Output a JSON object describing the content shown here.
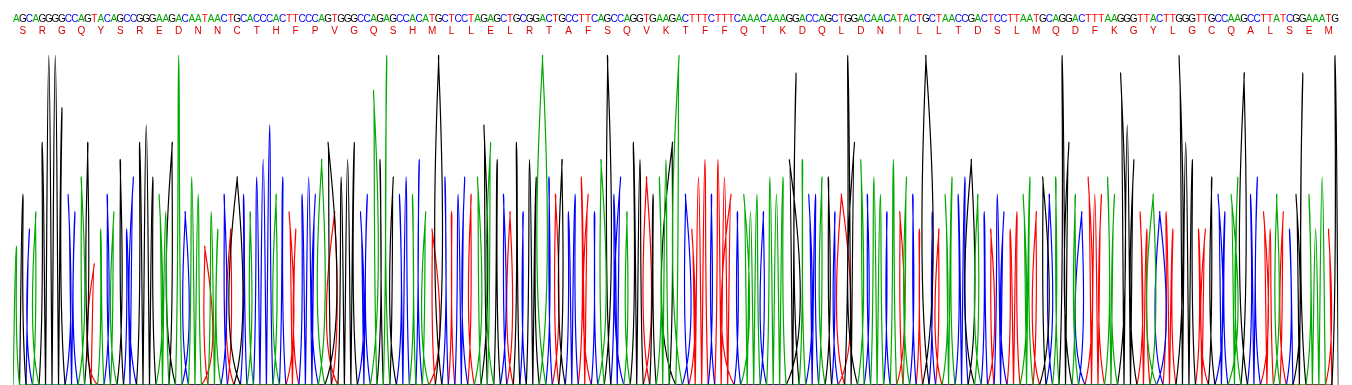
{
  "chart_data": {
    "type": "line",
    "categories": [
      "A",
      "G",
      "C",
      "A",
      "G",
      "G",
      "G",
      "G",
      "C",
      "C",
      "A",
      "G",
      "T",
      "A",
      "C",
      "A",
      "G",
      "C",
      "C",
      "G",
      "G",
      "G",
      "A",
      "A",
      "G",
      "A",
      "C",
      "A",
      "A",
      "T",
      "A",
      "A",
      "C",
      "T",
      "G",
      "C",
      "A",
      "C",
      "C",
      "C",
      "A",
      "C",
      "T",
      "T",
      "C",
      "C",
      "C",
      "A",
      "G",
      "T",
      "G",
      "G",
      "G",
      "C",
      "C",
      "A",
      "G",
      "A",
      "G",
      "C",
      "C",
      "A",
      "C",
      "A",
      "T",
      "G",
      "C",
      "T",
      "C",
      "C",
      "T",
      "A",
      "G",
      "A",
      "G",
      "C",
      "T",
      "G",
      "C",
      "G",
      "G",
      "A",
      "C",
      "T",
      "G",
      "C",
      "C",
      "T",
      "T",
      "C",
      "A",
      "G",
      "C",
      "C",
      "A",
      "G",
      "G",
      "T",
      "G",
      "A",
      "A",
      "G",
      "A",
      "C",
      "T",
      "T",
      "T",
      "C",
      "T",
      "T",
      "T",
      "C",
      "A",
      "A",
      "A",
      "C",
      "A",
      "A",
      "A",
      "G",
      "G",
      "A",
      "C",
      "C",
      "A",
      "G",
      "C",
      "T",
      "G",
      "G",
      "A",
      "C",
      "A",
      "A",
      "C",
      "A",
      "T",
      "A",
      "C",
      "T",
      "G",
      "C",
      "T",
      "A",
      "A",
      "C",
      "C",
      "G",
      "A",
      "C",
      "T",
      "C",
      "C",
      "T",
      "T",
      "A",
      "A",
      "T",
      "G",
      "C",
      "A",
      "G",
      "G",
      "A",
      "C",
      "T",
      "T",
      "T",
      "A",
      "A",
      "G",
      "G",
      "G",
      "T",
      "T",
      "A",
      "C",
      "T",
      "T",
      "G",
      "G",
      "G",
      "T",
      "T",
      "G",
      "C",
      "C",
      "A",
      "A",
      "G",
      "C",
      "C",
      "T",
      "T",
      "A",
      "T",
      "C",
      "G",
      "G",
      "A",
      "A",
      "A",
      "T",
      "G"
    ],
    "values": [
      40,
      55,
      45,
      50,
      70,
      95,
      95,
      80,
      55,
      50,
      60,
      70,
      35,
      45,
      55,
      50,
      65,
      45,
      60,
      70,
      75,
      60,
      55,
      50,
      70,
      95,
      50,
      60,
      55,
      40,
      50,
      45,
      55,
      45,
      60,
      55,
      50,
      60,
      65,
      75,
      55,
      60,
      50,
      45,
      55,
      60,
      55,
      65,
      70,
      50,
      60,
      65,
      70,
      50,
      55,
      85,
      65,
      95,
      60,
      55,
      60,
      55,
      65,
      50,
      45,
      95,
      60,
      50,
      55,
      60,
      55,
      60,
      75,
      70,
      65,
      55,
      50,
      70,
      50,
      65,
      60,
      95,
      60,
      55,
      65,
      50,
      55,
      60,
      55,
      50,
      65,
      95,
      55,
      60,
      50,
      70,
      65,
      60,
      55,
      60,
      65,
      70,
      95,
      55,
      45,
      60,
      65,
      55,
      65,
      60,
      55,
      50,
      55,
      50,
      55,
      50,
      60,
      55,
      60,
      65,
      90,
      65,
      55,
      55,
      60,
      60,
      50,
      55,
      95,
      70,
      65,
      55,
      60,
      55,
      50,
      65,
      50,
      60,
      55,
      45,
      95,
      50,
      45,
      55,
      60,
      55,
      60,
      65,
      55,
      50,
      45,
      55,
      50,
      45,
      50,
      55,
      60,
      50,
      60,
      55,
      60,
      95,
      70,
      55,
      50,
      60,
      55,
      55,
      60,
      55,
      90,
      75,
      65,
      50,
      45,
      55,
      50,
      50,
      45,
      95,
      70,
      65,
      45,
      45,
      60,
      55,
      50,
      55,
      60,
      90,
      55,
      60,
      50,
      45,
      55,
      50,
      45,
      55,
      90,
      55,
      45,
      60,
      45,
      95
    ],
    "colors": [
      "#0a0",
      "#000",
      "#00f",
      "#0a0",
      "#000",
      "#000",
      "#000",
      "#000",
      "#00f",
      "#00f",
      "#0a0",
      "#000",
      "#f00",
      "#0a0",
      "#00f",
      "#0a0",
      "#000",
      "#00f",
      "#00f",
      "#000",
      "#000",
      "#000",
      "#0a0",
      "#0a0",
      "#000",
      "#0a0",
      "#00f",
      "#0a0",
      "#0a0",
      "#f00",
      "#0a0",
      "#0a0",
      "#00f",
      "#f00",
      "#000",
      "#00f",
      "#0a0",
      "#00f",
      "#00f",
      "#00f",
      "#0a0",
      "#00f",
      "#f00",
      "#f00",
      "#00f",
      "#00f",
      "#00f",
      "#0a0",
      "#000",
      "#f00",
      "#000",
      "#000",
      "#000",
      "#00f",
      "#00f",
      "#0a0",
      "#000",
      "#0a0",
      "#000",
      "#00f",
      "#00f",
      "#0a0",
      "#00f",
      "#0a0",
      "#f00",
      "#000",
      "#00f",
      "#f00",
      "#00f",
      "#00f",
      "#f00",
      "#0a0",
      "#000",
      "#0a0",
      "#000",
      "#00f",
      "#f00",
      "#000",
      "#00f",
      "#000",
      "#000",
      "#0a0",
      "#00f",
      "#f00",
      "#000",
      "#00f",
      "#00f",
      "#f00",
      "#f00",
      "#00f",
      "#0a0",
      "#000",
      "#00f",
      "#00f",
      "#0a0",
      "#000",
      "#000",
      "#f00",
      "#000",
      "#0a0",
      "#0a0",
      "#000",
      "#0a0",
      "#00f",
      "#f00",
      "#f00",
      "#f00",
      "#00f",
      "#f00",
      "#f00",
      "#f00",
      "#00f",
      "#0a0",
      "#0a0",
      "#0a0",
      "#00f",
      "#0a0",
      "#0a0",
      "#0a0",
      "#000",
      "#000",
      "#0a0",
      "#00f",
      "#00f",
      "#0a0",
      "#000",
      "#00f",
      "#f00",
      "#000",
      "#000",
      "#0a0",
      "#00f",
      "#0a0",
      "#0a0",
      "#00f",
      "#0a0",
      "#f00",
      "#0a0",
      "#00f",
      "#f00",
      "#000",
      "#00f",
      "#f00",
      "#0a0",
      "#0a0",
      "#00f",
      "#00f",
      "#000",
      "#0a0",
      "#00f",
      "#f00",
      "#00f",
      "#00f",
      "#f00",
      "#f00",
      "#0a0",
      "#0a0",
      "#f00",
      "#000",
      "#00f",
      "#0a0",
      "#000",
      "#000",
      "#0a0",
      "#00f",
      "#f00",
      "#f00",
      "#f00",
      "#0a0",
      "#0a0",
      "#000",
      "#000",
      "#000",
      "#f00",
      "#f00",
      "#0a0",
      "#00f",
      "#f00",
      "#f00",
      "#000",
      "#000",
      "#000",
      "#f00",
      "#f00",
      "#000",
      "#00f",
      "#00f",
      "#0a0",
      "#0a0",
      "#000",
      "#00f",
      "#00f",
      "#f00",
      "#f00",
      "#0a0",
      "#f00",
      "#00f",
      "#000",
      "#000",
      "#0a0",
      "#0a0",
      "#0a0",
      "#f00",
      "#000"
    ],
    "annotations": [
      "S",
      "R",
      "G",
      "Q",
      "Y",
      "S",
      "R",
      "E",
      "D",
      "N",
      "N",
      "C",
      "T",
      "H",
      "F",
      "P",
      "V",
      "G",
      "Q",
      "S",
      "H",
      "M",
      "L",
      "L",
      "E",
      "L",
      "R",
      "T",
      "A",
      "F",
      "S",
      "Q",
      "V",
      "K",
      "T",
      "F",
      "F",
      "Q",
      "T",
      "K",
      "D",
      "Q",
      "L",
      "D",
      "N",
      "I",
      "L",
      "L",
      "T",
      "D",
      "S",
      "L",
      "M",
      "Q",
      "D",
      "F",
      "K",
      "G",
      "Y",
      "L",
      "G",
      "C",
      "Q",
      "A",
      "L",
      "S",
      "E",
      "M"
    ],
    "ylim": [
      0,
      100
    ],
    "grid": false,
    "tick_labels": "x"
  }
}
